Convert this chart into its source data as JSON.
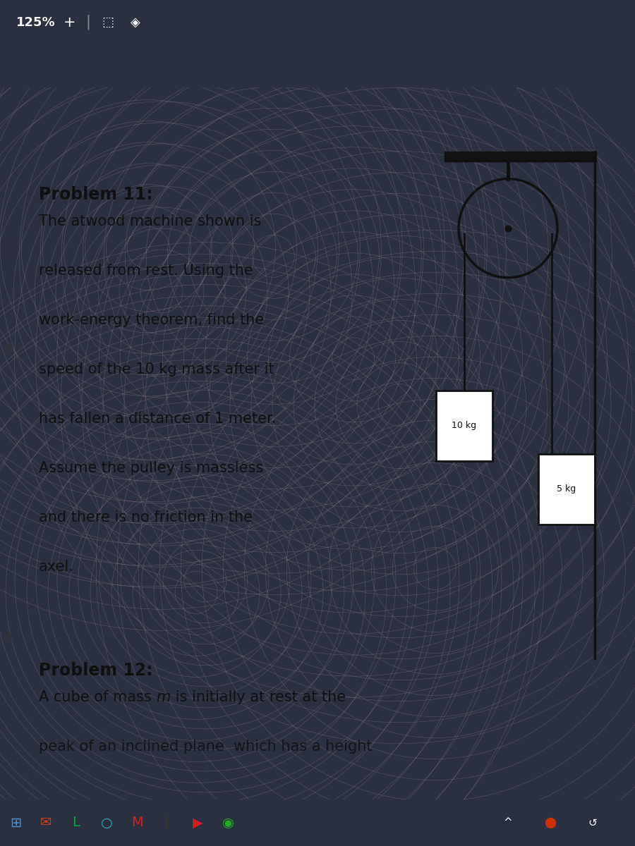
{
  "toolbar_text": "125%  +  |  ⎕  ◈",
  "problem11_title": "Problem 11:",
  "problem11_body_lines": [
    "The atwood machine shown is",
    "released from rest. Using the",
    "work-energy theorem, find the",
    "speed of the 10 kg mass after it",
    "has fallen a distance of 1 meter.",
    "Assume the pulley is massless",
    "and there is no friction in the",
    "axel."
  ],
  "problem12_title": "Problem 12:",
  "problem12_body_lines": [
    "A cube of mass m is initially at rest at the",
    "peak of an inclined plane  which has a height"
  ],
  "mass1_label": "10 kg",
  "mass2_label": "5 kg",
  "bg_dark": "#2a3040",
  "bg_dark2": "#1e2535",
  "bg_pink": "#d8b0b8",
  "bg_stripe": "#3a4555",
  "text_color": "#111111",
  "diagram_color": "#111111",
  "taskbar_color": "#111122",
  "toolbar_bg": "#2a3040",
  "left_e_color": "#333333",
  "p12_italic": "m"
}
